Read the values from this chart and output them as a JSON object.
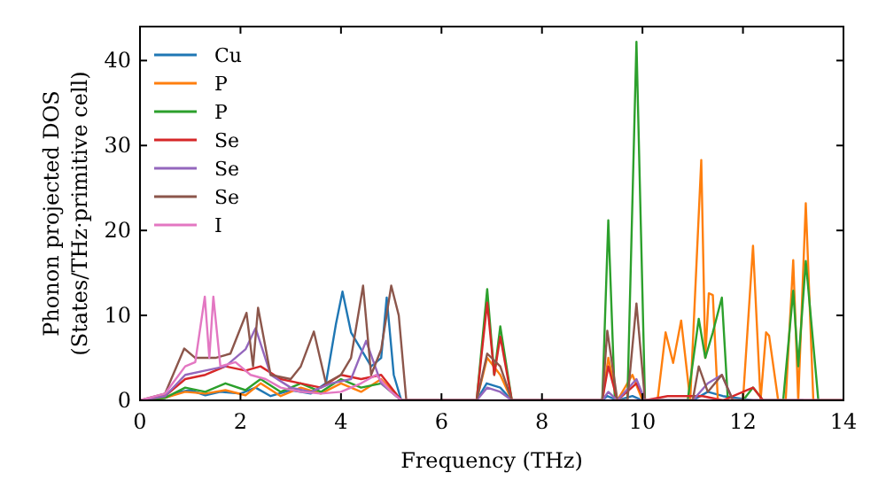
{
  "chart_data": {
    "type": "line",
    "xlabel": "Frequency (THz)",
    "ylabel": "Phonon projected DOS\n(States/THz·primitive cell)",
    "xlim": [
      0,
      14
    ],
    "ylim": [
      0,
      44
    ],
    "xticks": [
      0,
      2,
      4,
      6,
      8,
      10,
      12,
      14
    ],
    "yticks": [
      0,
      10,
      20,
      30,
      40
    ],
    "legend": "top left",
    "grid": false,
    "marker": "none",
    "line_style": "solid",
    "series": [
      {
        "name": "Cu",
        "color": "#1f77b4",
        "x": [
          0,
          0.5,
          0.8,
          1.0,
          1.3,
          1.6,
          2.0,
          2.3,
          2.6,
          3.0,
          3.4,
          3.7,
          3.9,
          4.03,
          4.2,
          4.4,
          4.6,
          4.8,
          4.91,
          5.05,
          5.2,
          6.7,
          6.9,
          7.17,
          7.4,
          9.2,
          9.3,
          9.5,
          9.8,
          10.0,
          11.0,
          11.3,
          11.6,
          12.2,
          13.2
        ],
        "values": [
          0,
          0.3,
          1,
          1.2,
          0.6,
          1,
          0.8,
          1.5,
          0.5,
          1.2,
          0.8,
          2,
          9,
          12.8,
          8,
          6,
          4,
          5,
          12.1,
          3,
          0,
          0,
          2,
          1.5,
          0,
          0,
          0.5,
          0,
          0.5,
          0,
          0,
          1,
          0.5,
          0,
          0
        ]
      },
      {
        "name": "P",
        "color": "#ff7f0e",
        "x": [
          0,
          0.5,
          0.9,
          1.3,
          1.7,
          2.1,
          2.4,
          2.8,
          3.2,
          3.6,
          4.0,
          4.4,
          4.8,
          5.2,
          6.7,
          6.91,
          7.17,
          7.4,
          9.2,
          9.32,
          9.5,
          9.8,
          10.0,
          10.3,
          10.46,
          10.61,
          10.77,
          10.95,
          11.17,
          11.25,
          11.32,
          11.4,
          11.5,
          12.0,
          12.2,
          12.35,
          12.46,
          12.52,
          12.7,
          12.85,
          13.0,
          13.1,
          13.25,
          13.4,
          14
        ],
        "values": [
          0,
          0.3,
          1,
          0.8,
          1.2,
          0.6,
          2,
          0.5,
          1.5,
          0.8,
          2,
          1,
          2.5,
          0,
          0,
          5,
          3,
          0,
          0,
          5,
          0,
          3,
          0,
          0,
          8,
          4.4,
          9.4,
          0,
          28.3,
          5,
          12.6,
          12.4,
          0,
          0,
          18.2,
          0,
          8,
          7.6,
          0,
          0,
          16.5,
          0,
          23.2,
          0,
          0
        ]
      },
      {
        "name": "P",
        "color": "#2ca02c",
        "x": [
          0,
          0.5,
          0.9,
          1.3,
          1.7,
          2.1,
          2.4,
          2.8,
          3.2,
          3.6,
          4.0,
          4.4,
          4.8,
          5.2,
          6.7,
          6.91,
          7.05,
          7.17,
          7.4,
          9.2,
          9.32,
          9.45,
          9.7,
          9.88,
          10.05,
          10.9,
          11.12,
          11.25,
          11.4,
          11.58,
          11.7,
          12.0,
          12.2,
          12.4,
          12.8,
          13.0,
          13.1,
          13.25,
          13.5,
          14
        ],
        "values": [
          0,
          0.3,
          1.5,
          1,
          2,
          1.2,
          2.5,
          1,
          2,
          1,
          2.5,
          1.5,
          2,
          0,
          0,
          13.1,
          3,
          8.7,
          0,
          0,
          21.2,
          0,
          0,
          42.2,
          0,
          0,
          9.6,
          5,
          8,
          12.1,
          0,
          0,
          1.5,
          0,
          0,
          12.9,
          4,
          16.4,
          0,
          0
        ]
      },
      {
        "name": "Se",
        "color": "#d62728",
        "x": [
          0,
          0.5,
          0.9,
          1.3,
          1.7,
          2.1,
          2.4,
          2.8,
          3.2,
          3.6,
          4.0,
          4.4,
          4.8,
          5.2,
          6.7,
          6.91,
          7.05,
          7.17,
          7.4,
          9.2,
          9.32,
          9.5,
          9.88,
          10.05,
          10.5,
          11.2,
          11.6,
          12.2,
          12.4,
          14
        ],
        "values": [
          0,
          0.5,
          2.5,
          3,
          4,
          3.5,
          4,
          2.5,
          2,
          1.5,
          3,
          2.5,
          3,
          0,
          0,
          11.5,
          3,
          7.5,
          0,
          0,
          4,
          0,
          2,
          0,
          0.5,
          0.5,
          0,
          1.5,
          0,
          0
        ]
      },
      {
        "name": "Se",
        "color": "#9467bd",
        "x": [
          0,
          0.5,
          0.9,
          1.3,
          1.7,
          2.1,
          2.3,
          2.6,
          3.0,
          3.4,
          3.8,
          4.2,
          4.5,
          4.8,
          5.2,
          6.7,
          6.91,
          7.17,
          7.4,
          9.2,
          9.32,
          9.5,
          9.88,
          10.05,
          11.0,
          11.3,
          11.58,
          11.8,
          14
        ],
        "values": [
          0,
          0.5,
          3,
          3.5,
          4,
          6,
          8.5,
          3,
          1.5,
          1,
          2,
          2.5,
          7,
          2,
          0,
          0,
          1.5,
          1,
          0,
          0,
          1,
          0,
          2.5,
          0,
          0,
          2,
          3,
          0,
          0
        ]
      },
      {
        "name": "Se",
        "color": "#8c564b",
        "x": [
          0,
          0.5,
          0.88,
          1.1,
          1.5,
          1.8,
          2.12,
          2.25,
          2.35,
          2.6,
          3.0,
          3.2,
          3.46,
          3.7,
          4.0,
          4.2,
          4.44,
          4.6,
          4.8,
          5.0,
          5.15,
          5.3,
          6.7,
          6.91,
          7.17,
          7.4,
          9.2,
          9.3,
          9.5,
          9.7,
          9.88,
          10.05,
          11.0,
          11.12,
          11.3,
          11.58,
          11.8,
          14
        ],
        "values": [
          0,
          0.8,
          6.1,
          5,
          5,
          5.5,
          10.3,
          4,
          10.9,
          3,
          2.5,
          4,
          8.1,
          2,
          3,
          5,
          13.5,
          3,
          6,
          13.5,
          10,
          0,
          0,
          5.5,
          4,
          0,
          0,
          8.2,
          0,
          0,
          11.4,
          0,
          0,
          4,
          1,
          3,
          0,
          0
        ]
      },
      {
        "name": "I",
        "color": "#e377c2",
        "x": [
          0,
          0.5,
          0.9,
          1.1,
          1.29,
          1.38,
          1.46,
          1.6,
          1.9,
          2.2,
          2.5,
          2.8,
          3.2,
          3.6,
          4.0,
          4.4,
          4.7,
          5.0,
          5.2,
          14
        ],
        "values": [
          0,
          0.8,
          4,
          4.5,
          12.2,
          5,
          12.2,
          4,
          4.5,
          3,
          2.5,
          1.5,
          1,
          0.8,
          1,
          2,
          3,
          1,
          0,
          0
        ]
      }
    ]
  }
}
